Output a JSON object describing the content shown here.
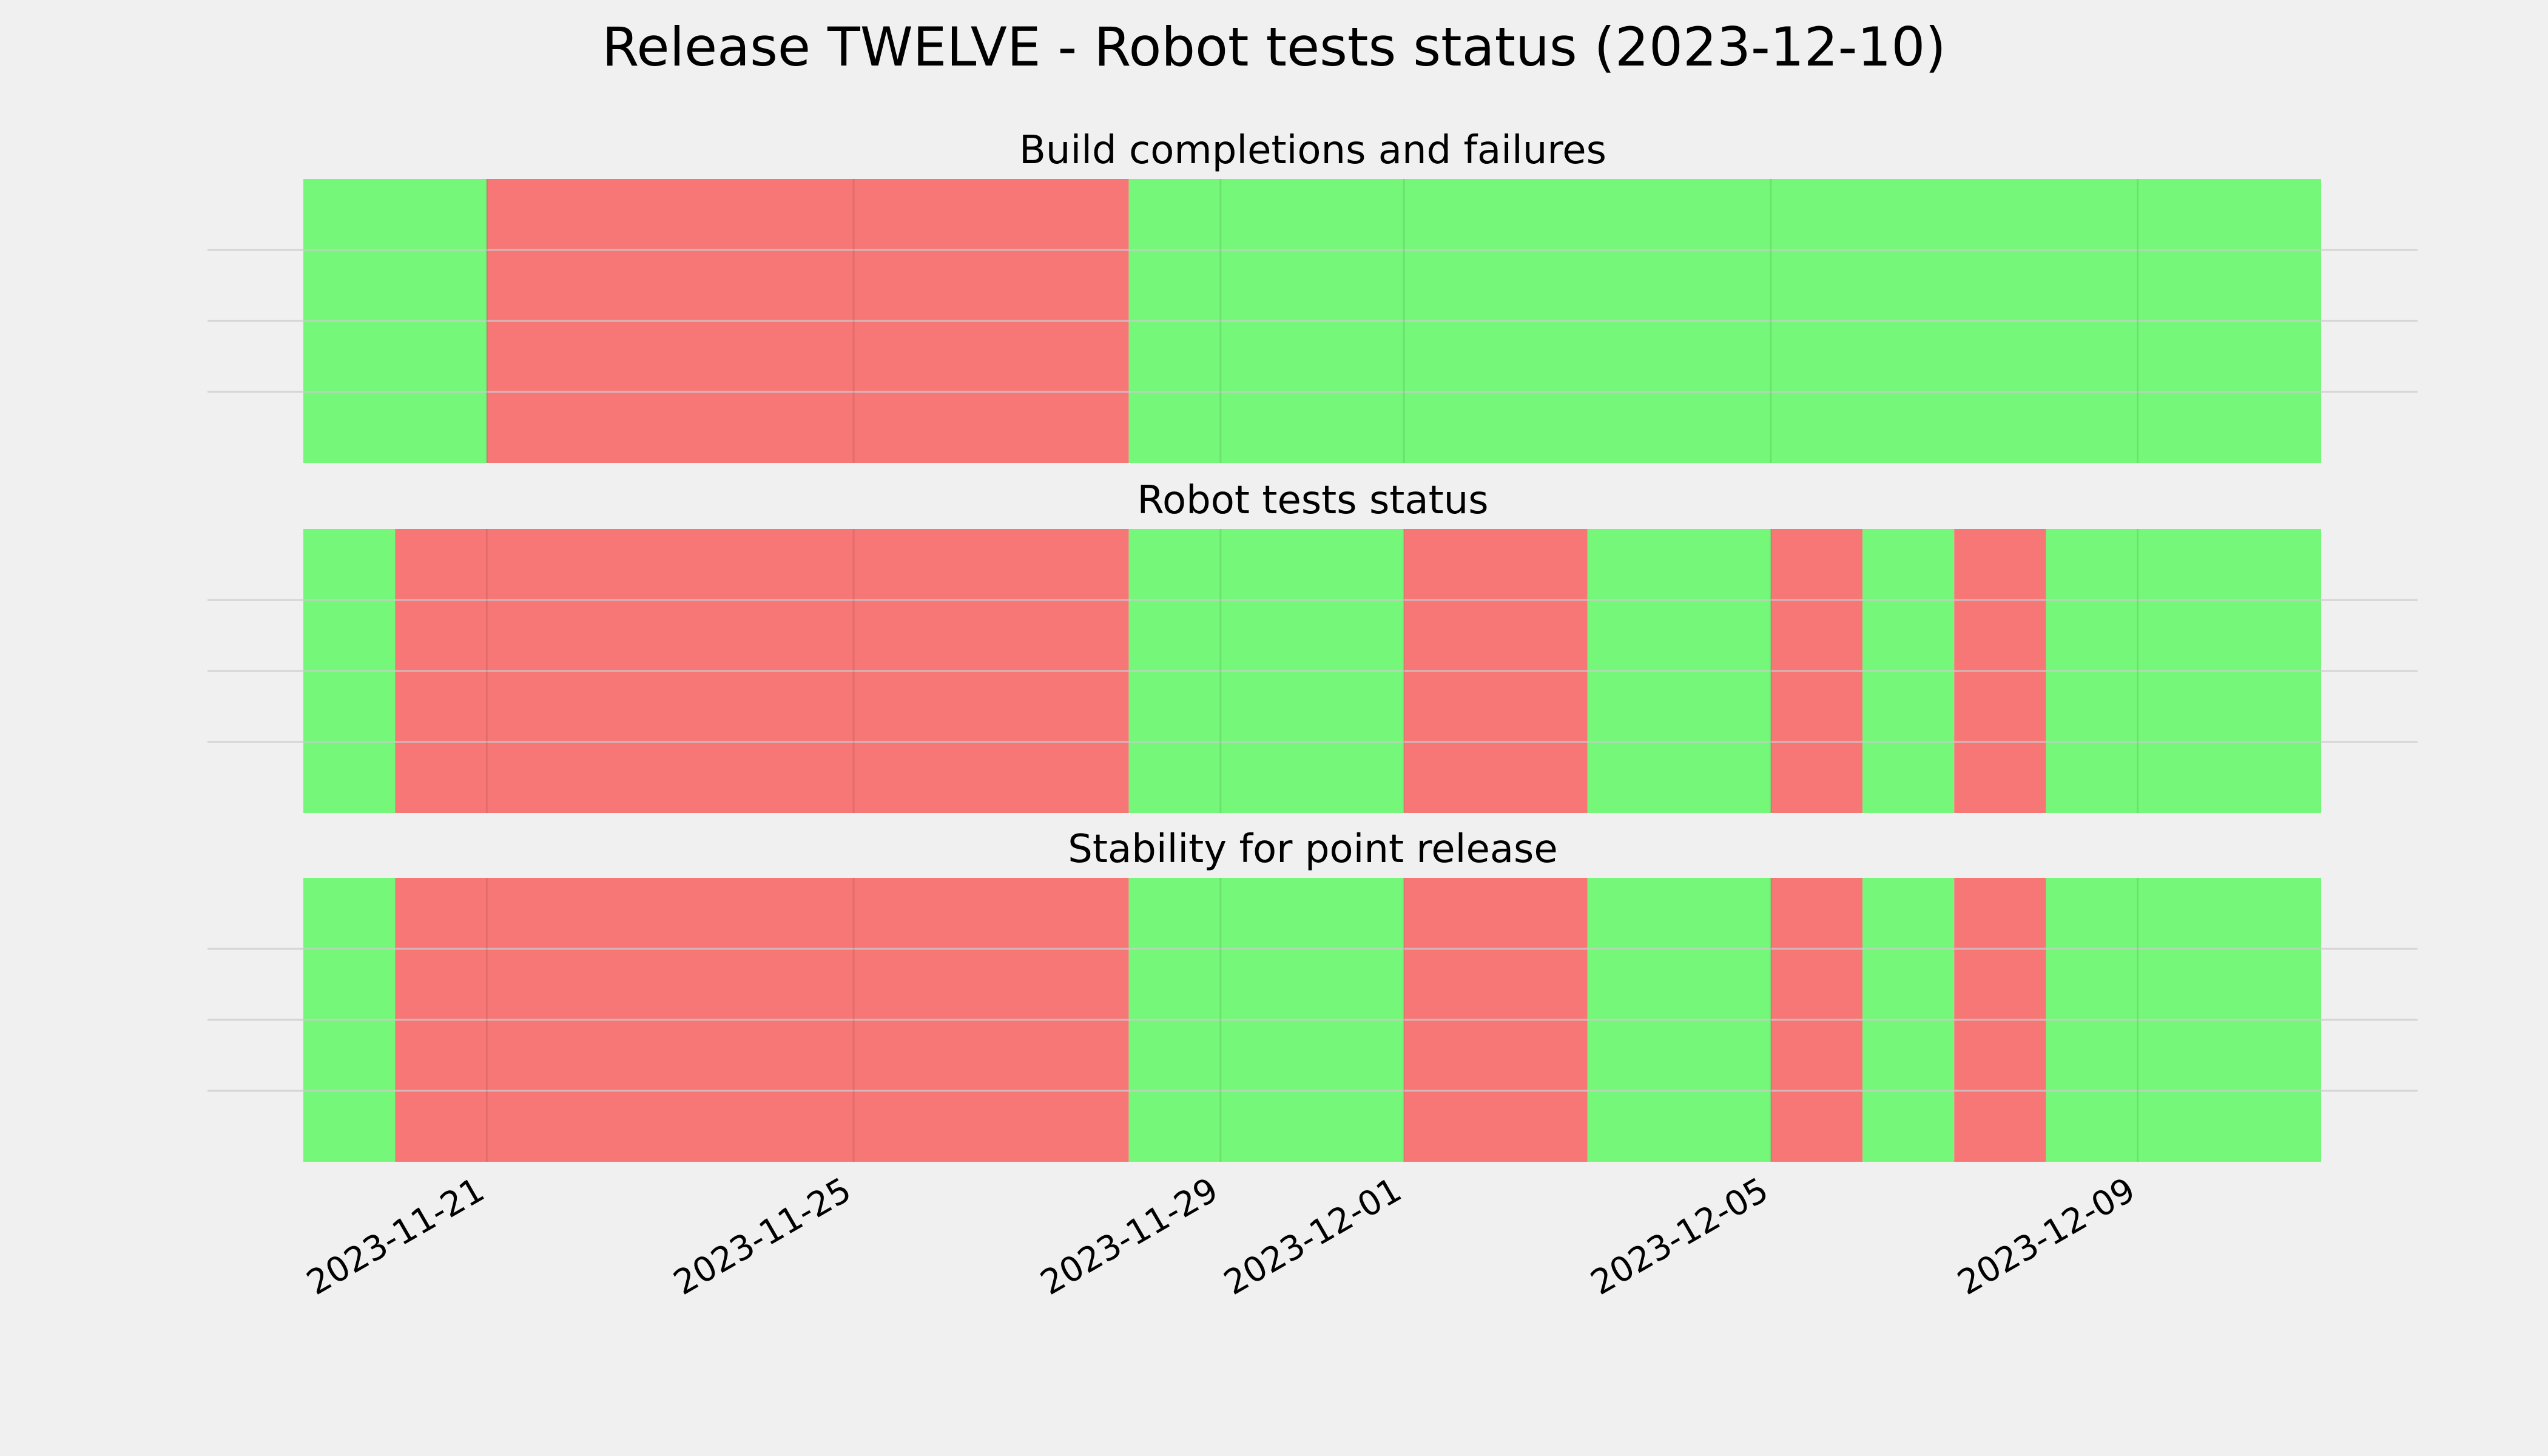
{
  "figure": {
    "title": "Release TWELVE - Robot tests status (2023-12-10)",
    "background": "#f0f0f0"
  },
  "colors": {
    "pass": "#75f77a",
    "fail": "#f77777",
    "gridline": "#cccccc"
  },
  "chart_data": {
    "type": "status-timeline",
    "x_axis": {
      "type": "date",
      "range": [
        "2023-11-19",
        "2023-12-11"
      ],
      "tick_labels": [
        "2023-11-21",
        "2023-11-25",
        "2023-11-29",
        "2023-12-01",
        "2023-12-05",
        "2023-12-09"
      ]
    },
    "panels": [
      {
        "title": "Build completions and failures",
        "segments": [
          {
            "start": "2023-11-19",
            "end": "2023-11-21",
            "status": "pass"
          },
          {
            "start": "2023-11-21",
            "end": "2023-11-28",
            "status": "fail"
          },
          {
            "start": "2023-11-28",
            "end": "2023-12-11",
            "status": "pass"
          }
        ]
      },
      {
        "title": "Robot tests status",
        "segments": [
          {
            "start": "2023-11-19",
            "end": "2023-11-20",
            "status": "pass"
          },
          {
            "start": "2023-11-20",
            "end": "2023-11-28",
            "status": "fail"
          },
          {
            "start": "2023-11-28",
            "end": "2023-12-01",
            "status": "pass"
          },
          {
            "start": "2023-12-01",
            "end": "2023-12-03",
            "status": "fail"
          },
          {
            "start": "2023-12-03",
            "end": "2023-12-05",
            "status": "pass"
          },
          {
            "start": "2023-12-05",
            "end": "2023-12-06",
            "status": "fail"
          },
          {
            "start": "2023-12-06",
            "end": "2023-12-07",
            "status": "pass"
          },
          {
            "start": "2023-12-07",
            "end": "2023-12-08",
            "status": "fail"
          },
          {
            "start": "2023-12-08",
            "end": "2023-12-11",
            "status": "pass"
          }
        ]
      },
      {
        "title": "Stability for point release",
        "segments": [
          {
            "start": "2023-11-19",
            "end": "2023-11-20",
            "status": "pass"
          },
          {
            "start": "2023-11-20",
            "end": "2023-11-28",
            "status": "fail"
          },
          {
            "start": "2023-11-28",
            "end": "2023-12-01",
            "status": "pass"
          },
          {
            "start": "2023-12-01",
            "end": "2023-12-03",
            "status": "fail"
          },
          {
            "start": "2023-12-03",
            "end": "2023-12-05",
            "status": "pass"
          },
          {
            "start": "2023-12-05",
            "end": "2023-12-06",
            "status": "fail"
          },
          {
            "start": "2023-12-06",
            "end": "2023-12-07",
            "status": "pass"
          },
          {
            "start": "2023-12-07",
            "end": "2023-12-08",
            "status": "fail"
          },
          {
            "start": "2023-12-08",
            "end": "2023-12-11",
            "status": "pass"
          }
        ]
      }
    ]
  }
}
